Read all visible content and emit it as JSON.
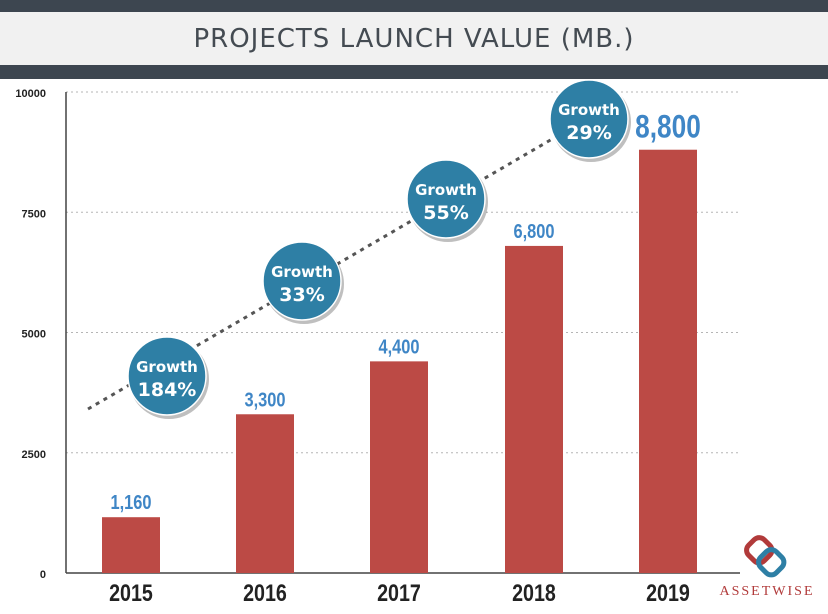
{
  "colors": {
    "bar": "#bc4a45",
    "bubble": "#2e7fa5",
    "value_label": "#3f86c6",
    "header_dark": "#3d4650",
    "header_light": "#f1f1f1",
    "logo": "#b13a3a"
  },
  "logo": {
    "text": "ASSETWISE",
    "icon": "interlocking-rings-icon"
  },
  "chart_data": {
    "type": "bar",
    "title": "PROJECTS LAUNCH VALUE (MB.)",
    "categories": [
      "2015",
      "2016",
      "2017",
      "2018",
      "2019"
    ],
    "values": [
      1160,
      3300,
      4400,
      6800,
      8800
    ],
    "value_labels": [
      "1,160",
      "3,300",
      "4,400",
      "6,800",
      "8,800"
    ],
    "y_ticks": [
      0,
      2500,
      5000,
      7500,
      10000
    ],
    "ylim": [
      0,
      10000
    ],
    "grid": true,
    "growth": [
      {
        "label": "Growth",
        "value": "184%"
      },
      {
        "label": "Growth",
        "value": "33%"
      },
      {
        "label": "Growth",
        "value": "55%"
      },
      {
        "label": "Growth",
        "value": "29%"
      }
    ],
    "trend_line": "dashed"
  }
}
